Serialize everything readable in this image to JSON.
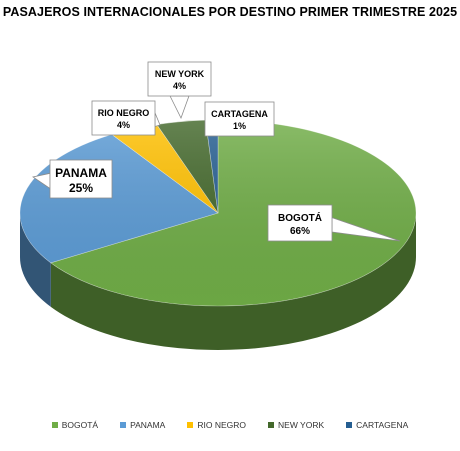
{
  "chart_data": {
    "type": "pie",
    "title": "PASAJEROS INTERNACIONALES POR DESTINO PRIMER TRIMESTRE 2025",
    "categories": [
      "BOGOTÁ",
      "PANAMA",
      "RIO NEGRO",
      "NEW YORK",
      "CARTAGENA"
    ],
    "values": [
      66,
      25,
      4,
      4,
      1
    ],
    "labels": [
      "66%",
      "25%",
      "4%",
      "4%",
      "1%"
    ],
    "colors": [
      "#70AD47",
      "#5B9BD5",
      "#FFC000",
      "#43682B",
      "#255E91"
    ],
    "legend_position": "bottom",
    "style": "3d-pie"
  }
}
